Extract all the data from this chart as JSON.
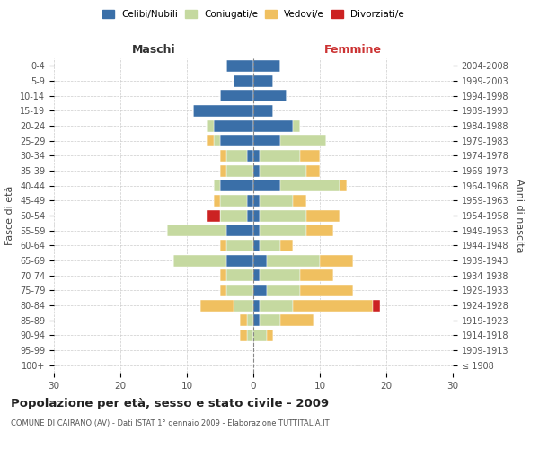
{
  "age_groups": [
    "100+",
    "95-99",
    "90-94",
    "85-89",
    "80-84",
    "75-79",
    "70-74",
    "65-69",
    "60-64",
    "55-59",
    "50-54",
    "45-49",
    "40-44",
    "35-39",
    "30-34",
    "25-29",
    "20-24",
    "15-19",
    "10-14",
    "5-9",
    "0-4"
  ],
  "birth_years": [
    "≤ 1908",
    "1909-1913",
    "1914-1918",
    "1919-1923",
    "1924-1928",
    "1929-1933",
    "1934-1938",
    "1939-1943",
    "1944-1948",
    "1949-1953",
    "1954-1958",
    "1959-1963",
    "1964-1968",
    "1969-1973",
    "1974-1978",
    "1979-1983",
    "1984-1988",
    "1989-1993",
    "1994-1998",
    "1999-2003",
    "2004-2008"
  ],
  "males": {
    "celibe": [
      0,
      0,
      0,
      0,
      0,
      0,
      0,
      4,
      0,
      4,
      1,
      1,
      5,
      0,
      1,
      5,
      6,
      9,
      5,
      3,
      4
    ],
    "coniugato": [
      0,
      0,
      1,
      1,
      3,
      4,
      4,
      8,
      4,
      9,
      4,
      4,
      1,
      4,
      3,
      1,
      1,
      0,
      0,
      0,
      0
    ],
    "vedovo": [
      0,
      0,
      1,
      1,
      5,
      1,
      1,
      0,
      1,
      0,
      0,
      1,
      0,
      1,
      1,
      1,
      0,
      0,
      0,
      0,
      0
    ],
    "divorziato": [
      0,
      0,
      0,
      0,
      0,
      0,
      0,
      0,
      0,
      0,
      2,
      0,
      0,
      0,
      0,
      0,
      0,
      0,
      0,
      0,
      0
    ]
  },
  "females": {
    "nubile": [
      0,
      0,
      0,
      1,
      1,
      2,
      1,
      2,
      1,
      1,
      1,
      1,
      4,
      1,
      1,
      4,
      6,
      3,
      5,
      3,
      4
    ],
    "coniugata": [
      0,
      0,
      2,
      3,
      5,
      5,
      6,
      8,
      3,
      7,
      7,
      5,
      9,
      7,
      6,
      7,
      1,
      0,
      0,
      0,
      0
    ],
    "vedova": [
      0,
      0,
      1,
      5,
      12,
      8,
      5,
      5,
      2,
      4,
      5,
      2,
      1,
      2,
      3,
      0,
      0,
      0,
      0,
      0,
      0
    ],
    "divorziata": [
      0,
      0,
      0,
      0,
      1,
      0,
      0,
      0,
      0,
      0,
      0,
      0,
      0,
      0,
      0,
      0,
      0,
      0,
      0,
      0,
      0
    ]
  },
  "colors": {
    "celibe": "#3a6fa8",
    "coniugato": "#c5d9a0",
    "vedovo": "#f0c060",
    "divorziato": "#cc2222"
  },
  "title": "Popolazione per età, sesso e stato civile - 2009",
  "subtitle": "COMUNE DI CAIRANO (AV) - Dati ISTAT 1° gennaio 2009 - Elaborazione TUTTITALIA.IT",
  "xlabel_left": "Maschi",
  "xlabel_right": "Femmine",
  "ylabel_left": "Fasce di età",
  "ylabel_right": "Anni di nascita",
  "xlim": 30,
  "legend_labels": [
    "Celibi/Nubili",
    "Coniugati/e",
    "Vedovi/e",
    "Divorziati/e"
  ],
  "background_color": "#ffffff"
}
